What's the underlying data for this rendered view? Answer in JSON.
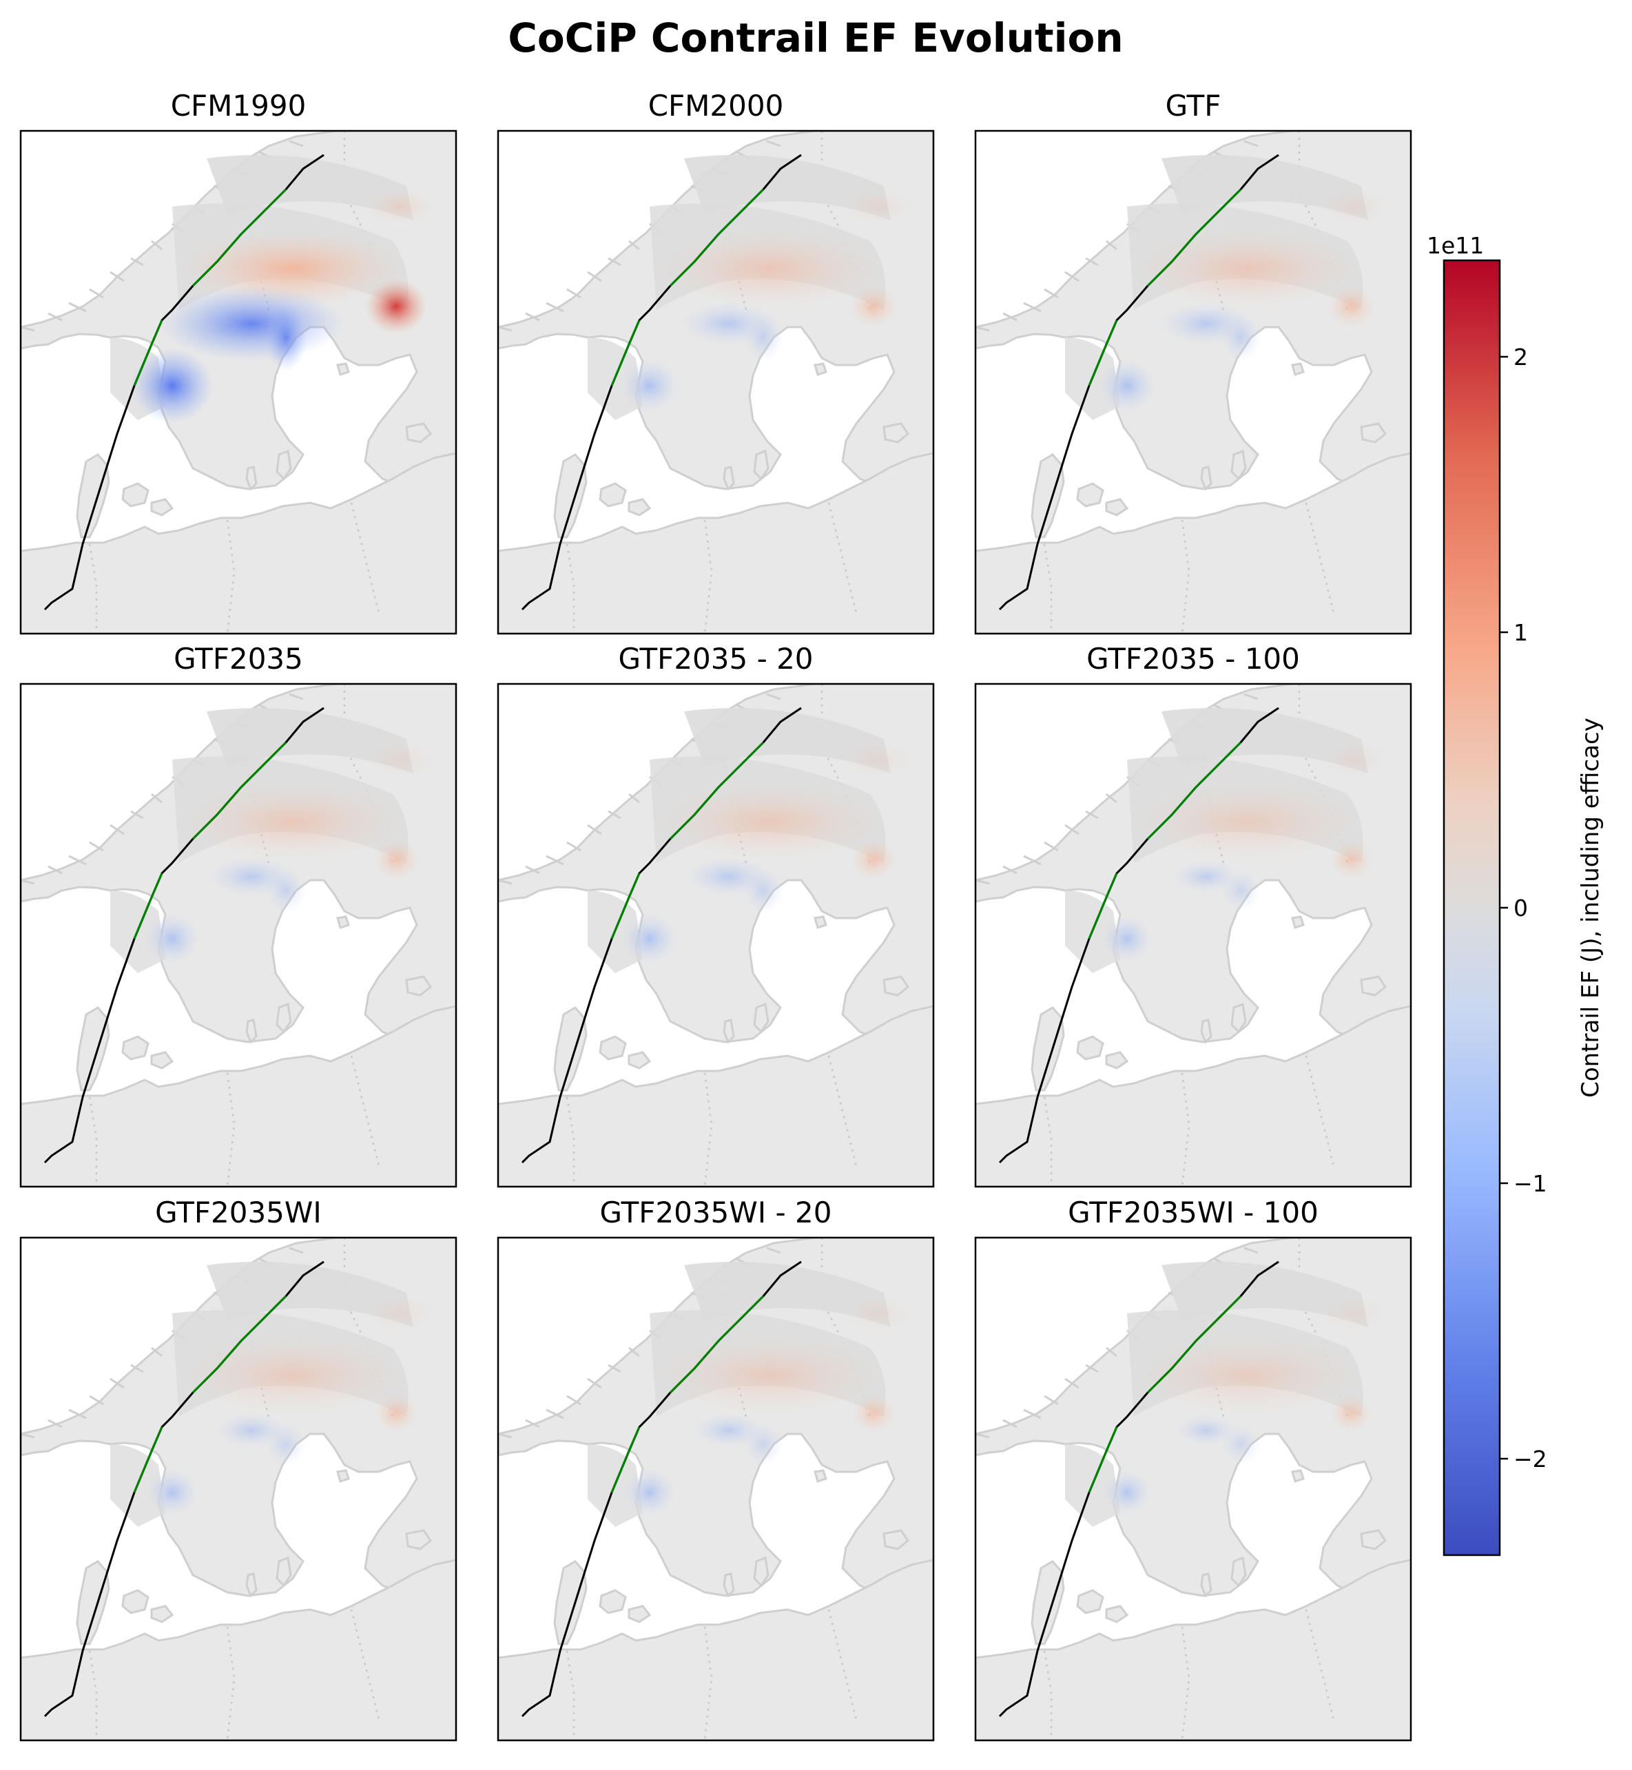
{
  "figure": {
    "title": "CoCiP Contrail EF Evolution"
  },
  "chart_data": {
    "type": "heatmap",
    "title": "CoCiP Contrail EF Evolution",
    "panels": [
      {
        "title": "CFM1990",
        "intensity": 1.0
      },
      {
        "title": "CFM2000",
        "intensity": 0.42
      },
      {
        "title": "GTF",
        "intensity": 0.4
      },
      {
        "title": "GTF2035",
        "intensity": 0.35
      },
      {
        "title": "GTF2035 - 20",
        "intensity": 0.34
      },
      {
        "title": "GTF2035 - 100",
        "intensity": 0.22
      },
      {
        "title": "GTF2035WI",
        "intensity": 0.26
      },
      {
        "title": "GTF2035WI - 20",
        "intensity": 0.25
      },
      {
        "title": "GTF2035WI - 100",
        "intensity": 0.18
      }
    ],
    "colorbar": {
      "label": "Contrail EF (J), including efficacy",
      "exponent_label": "1e11",
      "range": [
        -2.35,
        2.35
      ],
      "ticks": [
        -2,
        -1,
        0,
        1,
        2
      ],
      "tick_labels": [
        "−2",
        "−1",
        "0",
        "1",
        "2"
      ],
      "colormap": "coolwarm"
    },
    "colors": {
      "land": "#e8e8e8",
      "coast": "#cfcfcf",
      "flight_path": "#000000",
      "contrail_segment": "#008000"
    }
  }
}
